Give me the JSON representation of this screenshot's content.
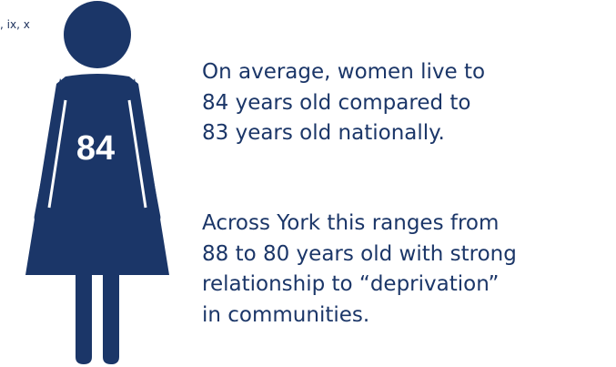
{
  "corner_text": ", ix, x",
  "figure_value": "84",
  "paragraphs": [
    [
      "On average, women live to",
      "84 years old compared to",
      "83 years old nationally."
    ],
    [
      "Across York this ranges from",
      "88 to 80 years old with strong",
      "relationship to “deprivation”",
      "in communities."
    ]
  ]
}
